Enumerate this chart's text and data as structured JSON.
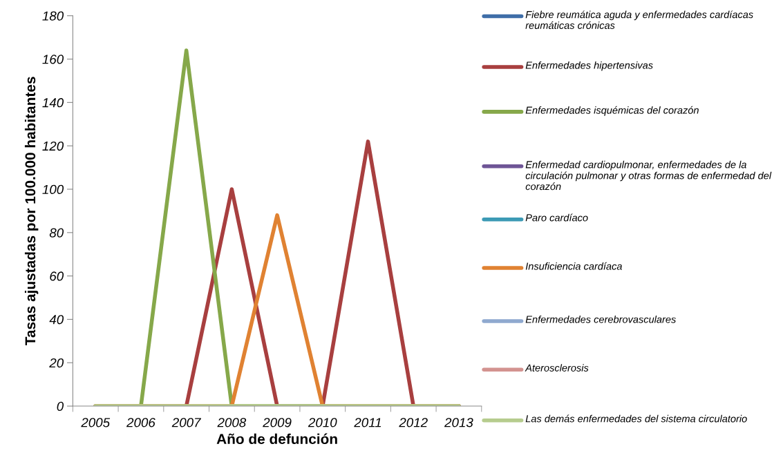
{
  "chart_data": {
    "type": "line",
    "xlabel": "Año de defunción",
    "ylabel": "Tasas ajustadas por 100.000 habitantes",
    "categories": [
      "2005",
      "2006",
      "2007",
      "2008",
      "2009",
      "2010",
      "2011",
      "2012",
      "2013"
    ],
    "ylim": [
      0,
      180
    ],
    "yticks": [
      0,
      20,
      40,
      60,
      80,
      100,
      120,
      140,
      160,
      180
    ],
    "grid": false,
    "legend": "right",
    "series": [
      {
        "name": "Fiebre reumática aguda y enfermedades cardíacas reumáticas crónicas",
        "color": "#3f6ea8",
        "values": [
          null,
          null,
          null,
          null,
          null,
          null,
          null,
          null,
          null
        ]
      },
      {
        "name": "Enfermedades hipertensivas",
        "color": "#a83f3f",
        "values": [
          0,
          0,
          0,
          100,
          0,
          0,
          122,
          0,
          0
        ]
      },
      {
        "name": "Enfermedades isquémicas del corazón",
        "color": "#86a84a",
        "values": [
          0,
          0,
          164,
          0,
          0,
          0,
          0,
          0,
          0
        ]
      },
      {
        "name": "Enfermedad cardiopulmonar, enfermedades de la circulación pulmonar y otras formas de enfermedad del corazón",
        "color": "#6e5596",
        "values": [
          null,
          null,
          null,
          null,
          null,
          null,
          null,
          null,
          null
        ]
      },
      {
        "name": "Paro cardíaco",
        "color": "#3c9ab5",
        "values": [
          null,
          null,
          null,
          null,
          null,
          null,
          null,
          null,
          null
        ]
      },
      {
        "name": "Insuficiencia cardíaca",
        "color": "#e08232",
        "values": [
          0,
          0,
          0,
          0,
          88,
          0,
          0,
          0,
          0
        ]
      },
      {
        "name": "Enfermedades cerebrovasculares",
        "color": "#8fa9cf",
        "values": [
          null,
          null,
          null,
          null,
          null,
          null,
          null,
          null,
          null
        ]
      },
      {
        "name": "Aterosclerosis",
        "color": "#d39390",
        "values": [
          null,
          null,
          null,
          null,
          null,
          null,
          null,
          null,
          null
        ]
      },
      {
        "name": "Las demás enfermedades del sistema circulatorio",
        "color": "#b6cc8e",
        "values": [
          0,
          0,
          0,
          0,
          0,
          0,
          0,
          0,
          0
        ]
      }
    ]
  }
}
